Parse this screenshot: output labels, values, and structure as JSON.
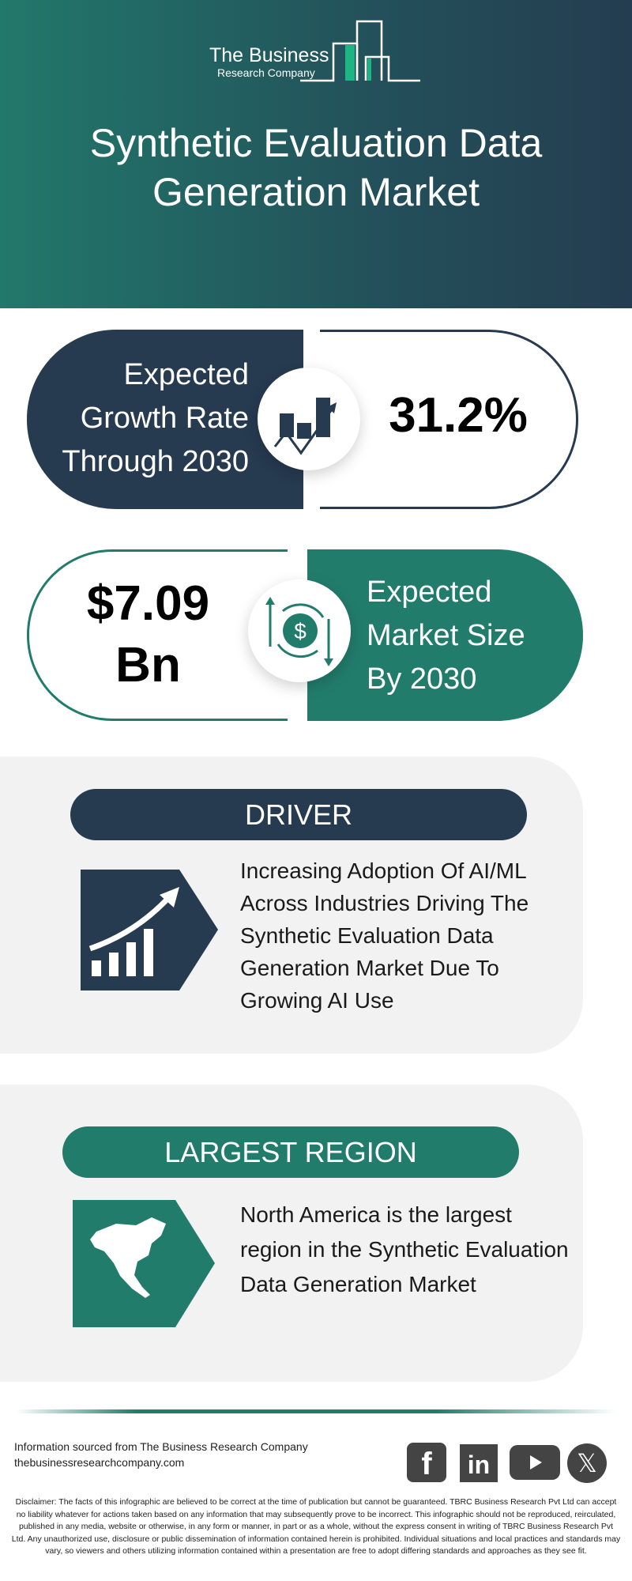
{
  "header": {
    "logo_line1": "The Business",
    "logo_line2": "Research Company",
    "title_line1": "Synthetic Evaluation Data",
    "title_line2": "Generation Market"
  },
  "growth": {
    "label_lines": [
      "Expected",
      "Growth Rate",
      "Through 2030"
    ],
    "value": "31.2%",
    "icon": "growth-chart-icon"
  },
  "market": {
    "value_line1": "$7.09",
    "value_line2": "Bn",
    "label_lines": [
      "Expected",
      "Market Size",
      "By 2030"
    ],
    "icon": "dollar-exchange-icon"
  },
  "driver": {
    "heading": "DRIVER",
    "text": "Increasing Adoption Of AI/ML Across Industries Driving The Synthetic Evaluation Data Generation Market Due To Growing AI Use",
    "icon": "rising-bars-icon"
  },
  "region": {
    "heading": "LARGEST REGION",
    "text": "North America is the largest region in the Synthetic Evaluation Data Generation Market",
    "icon": "north-america-map-icon"
  },
  "footer": {
    "source": "Information sourced from The Business Research Company",
    "website": "thebusinessresearchcompany.com",
    "social": [
      "facebook",
      "linkedin",
      "youtube",
      "x"
    ],
    "disclaimer": "Disclaimer: The facts of this infographic are believed to be correct at the time of publication but cannot be guaranteed. TBRC Business Research Pvt Ltd can accept no liability whatever for actions taken based on any information that may subsequently prove to be incorrect. This infographic should not be reproduced, reirculated, published in any media, website or otherwise, in any form or manner, in part or as a whole, without the express consent in writing of TBRC Business Research Pvt Ltd. Any unauthorized use, disclosure or public dissemination of information contained herein is prohibited. Individual situations and local practices and standards may vary, so viewers and others utilizing information contained within a presentation are free to adopt differing standards and approaches as they see fit."
  },
  "colors": {
    "navy": "#263a50",
    "teal": "#227c6c",
    "accent_green": "#1db586"
  }
}
